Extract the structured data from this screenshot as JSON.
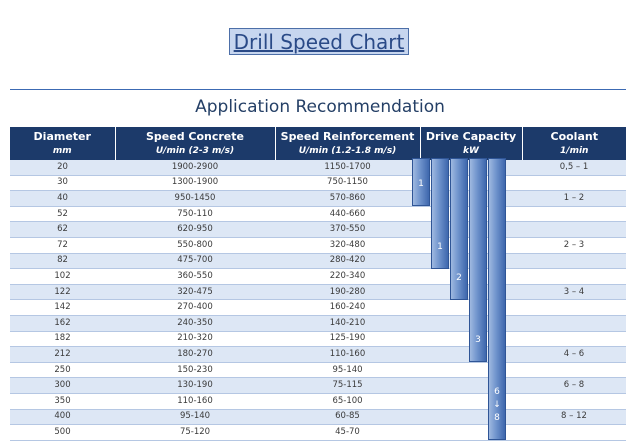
{
  "title": "Drill Speed Chart",
  "subtitle": "Application Recommendation",
  "columns": [
    {
      "name": "Diameter",
      "unit": "mm"
    },
    {
      "name": "Speed Concrete",
      "unit": "U/min (2-3 m/s)"
    },
    {
      "name": "Speed Reinforcement",
      "unit": "U/min (1.2-1.8 m/s)"
    },
    {
      "name": "Drive Capacity",
      "unit": "kW"
    },
    {
      "name": "Coolant",
      "unit": "1/min"
    }
  ],
  "rows": [
    {
      "diameter": "20",
      "concrete": "1900-2900",
      "reinforcement": "1150-1700",
      "coolant": "0,5 – 1"
    },
    {
      "diameter": "30",
      "concrete": "1300-1900",
      "reinforcement": "750-1150",
      "coolant": ""
    },
    {
      "diameter": "40",
      "concrete": "950-1450",
      "reinforcement": "570-860",
      "coolant": "1 – 2"
    },
    {
      "diameter": "52",
      "concrete": "750-110",
      "reinforcement": "440-660",
      "coolant": ""
    },
    {
      "diameter": "62",
      "concrete": "620-950",
      "reinforcement": "370-550",
      "coolant": ""
    },
    {
      "diameter": "72",
      "concrete": "550-800",
      "reinforcement": "320-480",
      "coolant": "2 – 3"
    },
    {
      "diameter": "82",
      "concrete": "475-700",
      "reinforcement": "280-420",
      "coolant": ""
    },
    {
      "diameter": "102",
      "concrete": "360-550",
      "reinforcement": "220-340",
      "coolant": ""
    },
    {
      "diameter": "122",
      "concrete": "320-475",
      "reinforcement": "190-280",
      "coolant": "3 – 4"
    },
    {
      "diameter": "142",
      "concrete": "270-400",
      "reinforcement": "160-240",
      "coolant": ""
    },
    {
      "diameter": "162",
      "concrete": "240-350",
      "reinforcement": "140-210",
      "coolant": ""
    },
    {
      "diameter": "182",
      "concrete": "210-320",
      "reinforcement": "125-190",
      "coolant": ""
    },
    {
      "diameter": "212",
      "concrete": "180-270",
      "reinforcement": "110-160",
      "coolant": "4 – 6"
    },
    {
      "diameter": "250",
      "concrete": "150-230",
      "reinforcement": "95-140",
      "coolant": ""
    },
    {
      "diameter": "300",
      "concrete": "130-190",
      "reinforcement": "75-115",
      "coolant": "6 – 8"
    },
    {
      "diameter": "350",
      "concrete": "110-160",
      "reinforcement": "65-100",
      "coolant": ""
    },
    {
      "diameter": "400",
      "concrete": "95-140",
      "reinforcement": "60-85",
      "coolant": "8 – 12"
    },
    {
      "diameter": "500",
      "concrete": "75-120",
      "reinforcement": "45-70",
      "coolant": ""
    }
  ],
  "capacity_bars": [
    {
      "label": "1",
      "from_row": 0,
      "to_row": 2
    },
    {
      "label": "1",
      "from_row": 0,
      "to_row": 6
    },
    {
      "label": "2",
      "from_row": 0,
      "to_row": 8
    },
    {
      "label": "3",
      "from_row": 0,
      "to_row": 12
    },
    {
      "label": "6 ↓ 8",
      "from_row": 0,
      "to_row": 17
    }
  ]
}
